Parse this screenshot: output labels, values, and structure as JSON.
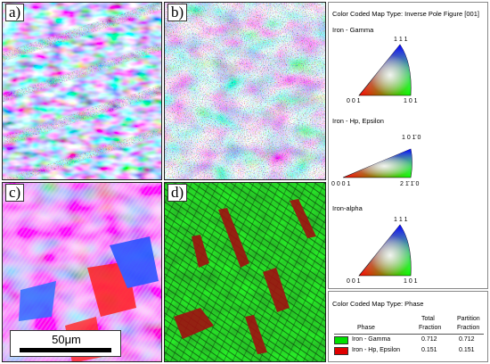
{
  "panels": [
    {
      "label": "a)"
    },
    {
      "label": "b)"
    },
    {
      "label": "c)"
    },
    {
      "label": "d)"
    }
  ],
  "scale_bar": {
    "label": "50μm"
  },
  "ipf_legend": {
    "title": "Color Coded Map Type: Inverse Pole Figure [001]",
    "phases": [
      {
        "name": "Iron - Gamma",
        "top": "1 1 1",
        "left": "0 0 1",
        "right": "1 0 1"
      },
      {
        "name": "Iron - Hp, Epsilon",
        "top": "1 0 1̄ 0",
        "left": "0 0 0 1",
        "right": "2 1̄ 1̄ 0"
      },
      {
        "name": "Iron-alpha",
        "top": "1 1 1",
        "left": "0 0 1",
        "right": "1 0 1"
      }
    ]
  },
  "phase_table": {
    "title": "Color Coded Map Type: Phase",
    "headers": {
      "phase": "Phase",
      "total_1": "Total",
      "total_2": "Fraction",
      "partition_1": "Partition",
      "partition_2": "Fraction"
    },
    "rows": [
      {
        "phase": "Iron - Gamma",
        "total": "0.712",
        "partition": "0.712",
        "color": "#00e000"
      },
      {
        "phase": "Iron - Hp, Epsilon",
        "total": "0.151",
        "partition": "0.151",
        "color": "#e00000"
      }
    ]
  }
}
